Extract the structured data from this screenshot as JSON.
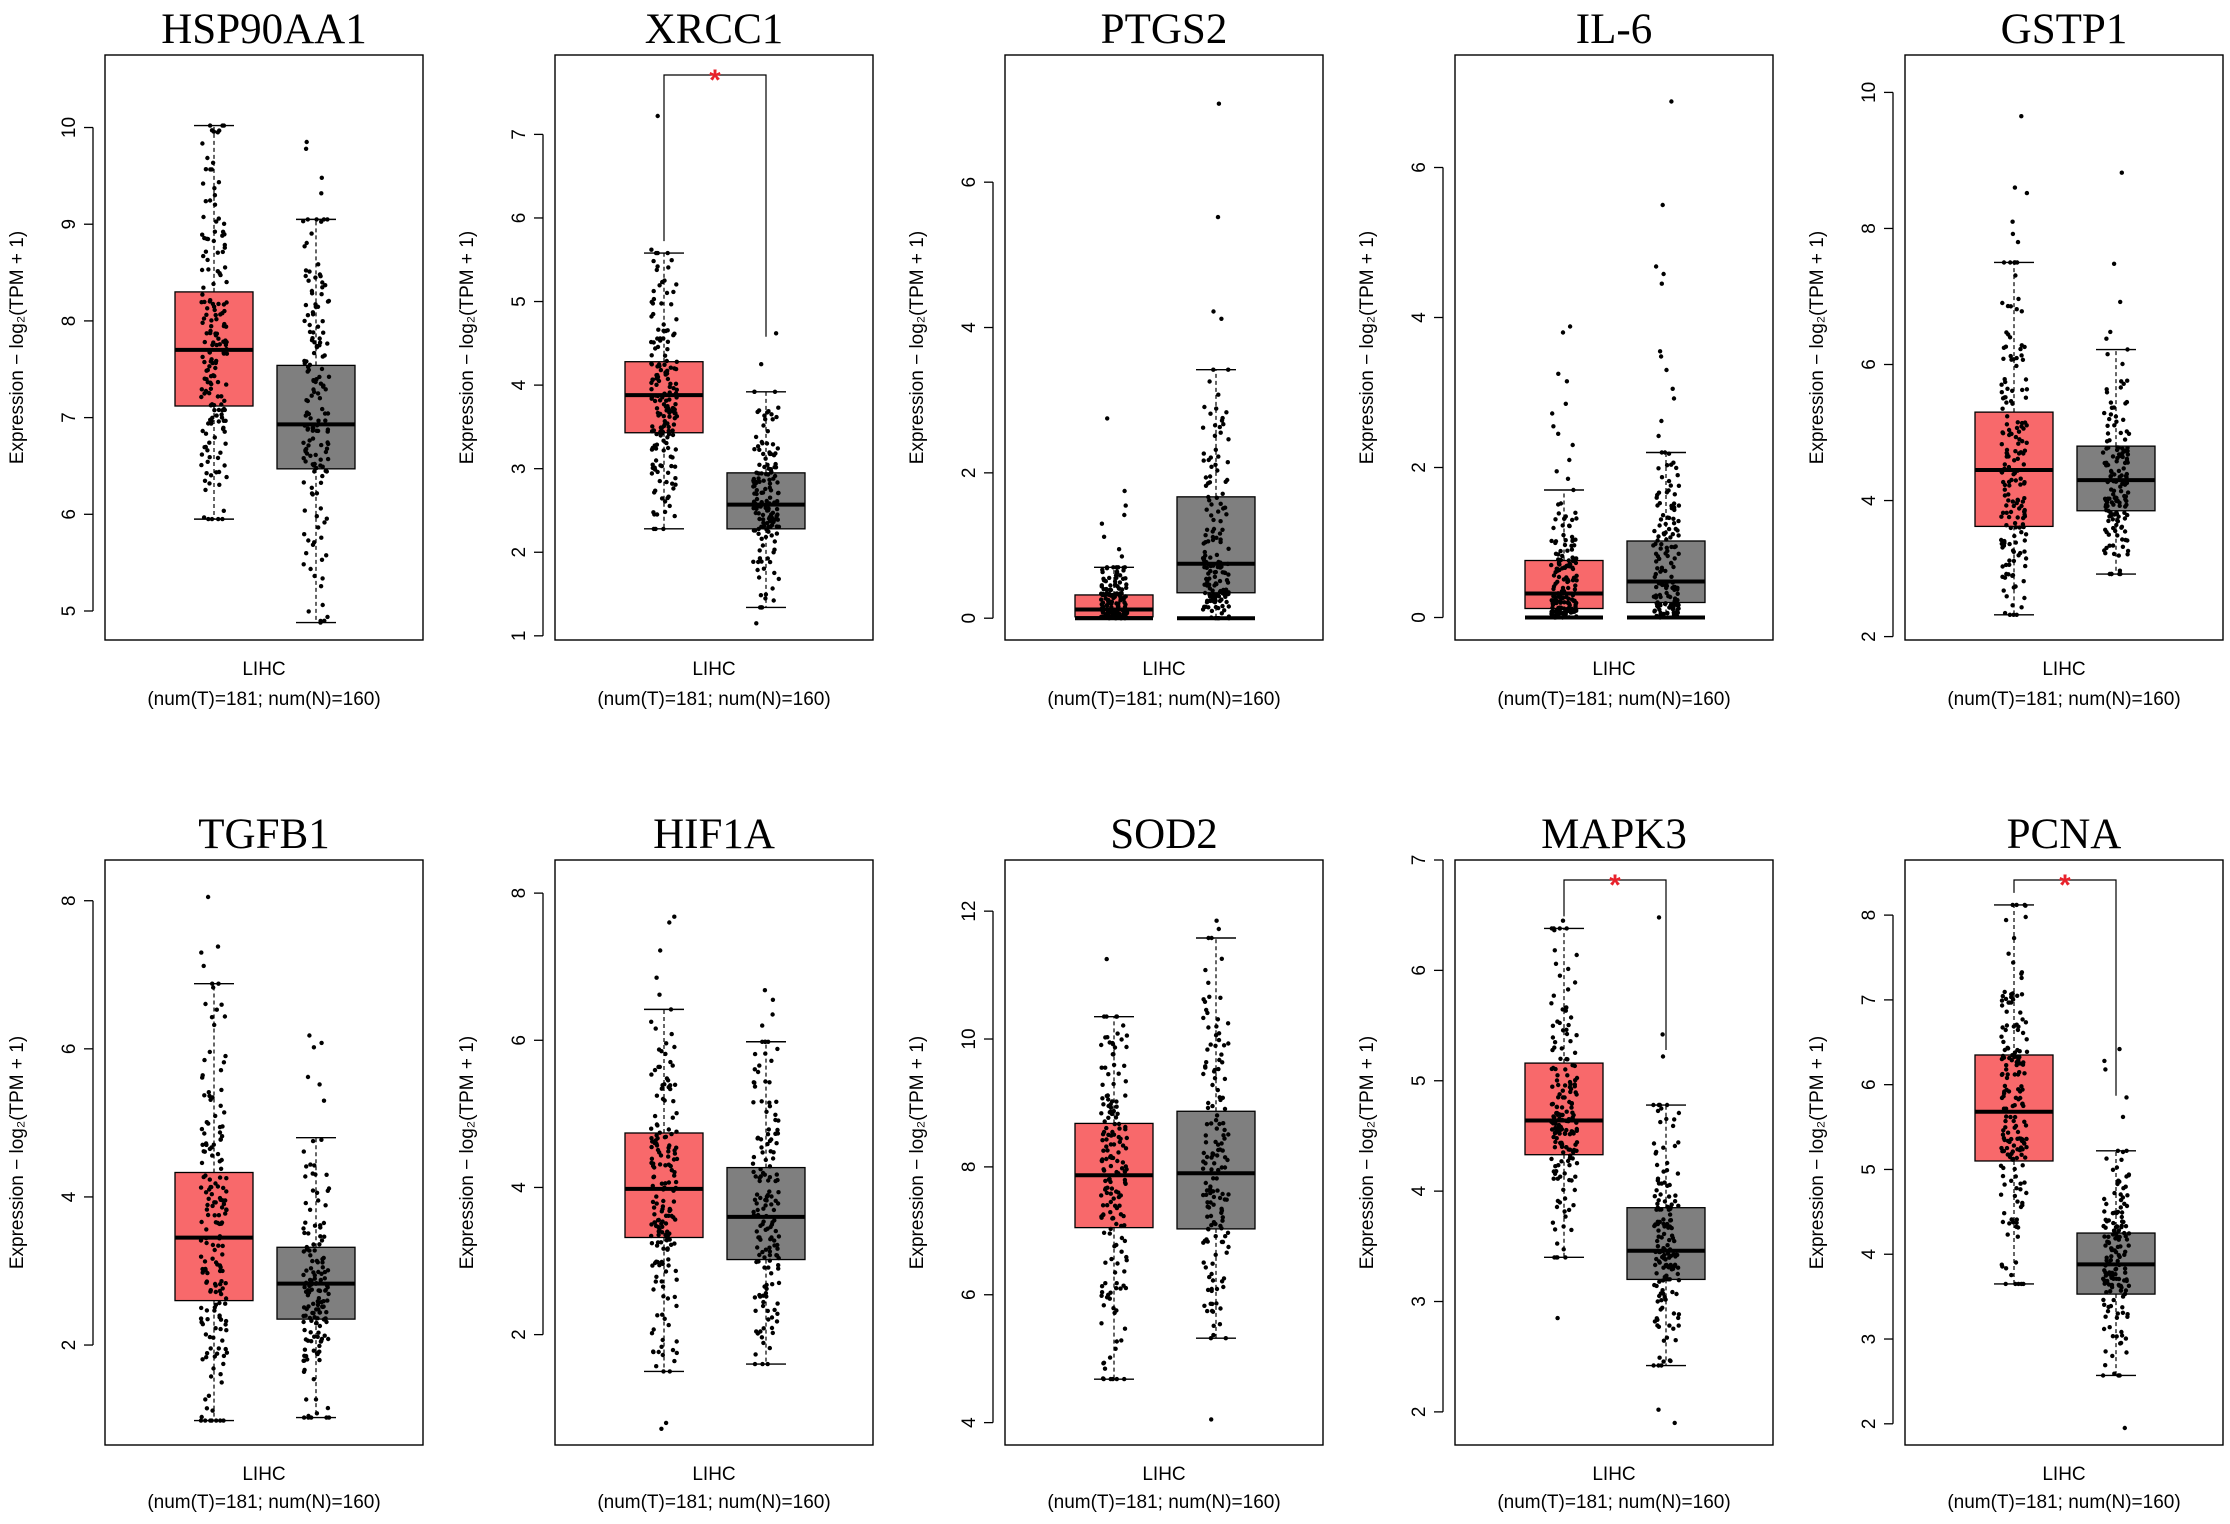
{
  "figure": {
    "tumor_color": "#F8696B",
    "normal_color": "#7F7F7F",
    "star_color": "#E8212B"
  },
  "chart_data": [
    {
      "type": "box",
      "title": "HSP90AA1",
      "ylabel": "Expression − log₂(TPM + 1)",
      "xlabel": "LIHC",
      "xsub": "(num(T)=181; num(N)=160)",
      "yticks": [
        5,
        6,
        7,
        8,
        9,
        10
      ],
      "ytick_labels": [
        "5",
        "6",
        "7",
        "8",
        "9",
        "10"
      ],
      "ylim": [
        4.7,
        10.75
      ],
      "significant": false,
      "series": [
        {
          "name": "Tumor",
          "n": 181,
          "min": 5.95,
          "q1": 7.12,
          "median": 7.7,
          "q3": 8.3,
          "max": 10.02,
          "outliers": []
        },
        {
          "name": "Normal",
          "n": 160,
          "min": 4.88,
          "q1": 6.47,
          "median": 6.93,
          "q3": 7.54,
          "max": 9.05,
          "outliers": [
            9.85,
            9.78,
            9.48,
            9.32
          ]
        }
      ]
    },
    {
      "type": "box",
      "title": "XRCC1",
      "ylabel": "Expression − log₂(TPM + 1)",
      "xlabel": "LIHC",
      "xsub": "(num(T)=181; num(N)=160)",
      "yticks": [
        1,
        2,
        3,
        4,
        5,
        6,
        7
      ],
      "ytick_labels": [
        "1",
        "2",
        "3",
        "4",
        "5",
        "6",
        "7"
      ],
      "ylim": [
        0.95,
        7.95
      ],
      "significant": true,
      "star": "*",
      "series": [
        {
          "name": "Tumor",
          "n": 181,
          "min": 2.28,
          "q1": 3.43,
          "median": 3.88,
          "q3": 4.28,
          "max": 5.58,
          "outliers": [
            7.22,
            5.62
          ]
        },
        {
          "name": "Normal",
          "n": 160,
          "min": 1.34,
          "q1": 2.28,
          "median": 2.57,
          "q3": 2.95,
          "max": 3.92,
          "outliers": [
            4.62,
            4.25,
            1.15
          ]
        }
      ]
    },
    {
      "type": "box",
      "title": "PTGS2",
      "ylabel": "Expression − log₂(TPM + 1)",
      "xlabel": "LIHC",
      "xsub": "(num(T)=181; num(N)=160)",
      "yticks": [
        0,
        2,
        4,
        6
      ],
      "ytick_labels": [
        "0",
        "2",
        "4",
        "6"
      ],
      "ylim": [
        -0.3,
        7.75
      ],
      "significant": false,
      "series": [
        {
          "name": "Tumor",
          "n": 181,
          "min": 0.0,
          "q1": 0.02,
          "median": 0.12,
          "q3": 0.32,
          "max": 0.7,
          "outliers": [
            2.75,
            1.75,
            1.55,
            1.42,
            1.3,
            1.12,
            0.95,
            0.85
          ]
        },
        {
          "name": "Normal",
          "n": 160,
          "min": 0.0,
          "q1": 0.35,
          "median": 0.75,
          "q3": 1.67,
          "max": 3.42,
          "outliers": [
            7.08,
            5.52,
            4.22,
            4.12
          ]
        }
      ]
    },
    {
      "type": "box",
      "title": "IL-6",
      "ylabel": "Expression − log₂(TPM + 1)",
      "xlabel": "LIHC",
      "xsub": "(num(T)=181; num(N)=160)",
      "yticks": [
        0,
        2,
        4,
        6
      ],
      "ytick_labels": [
        "0",
        "2",
        "4",
        "6"
      ],
      "ylim": [
        -0.3,
        7.5
      ],
      "significant": false,
      "series": [
        {
          "name": "Tumor",
          "n": 181,
          "min": 0.0,
          "q1": 0.12,
          "median": 0.32,
          "q3": 0.76,
          "max": 1.7,
          "outliers": [
            3.88,
            3.8,
            3.25,
            3.15,
            2.85,
            2.72,
            2.55,
            2.45,
            2.3,
            2.1,
            1.95,
            1.85
          ]
        },
        {
          "name": "Normal",
          "n": 160,
          "min": 0.0,
          "q1": 0.2,
          "median": 0.48,
          "q3": 1.02,
          "max": 2.2,
          "outliers": [
            6.88,
            5.5,
            4.68,
            4.58,
            4.45,
            3.55,
            3.48,
            3.3,
            3.05,
            2.92,
            2.62,
            2.42
          ]
        }
      ]
    },
    {
      "type": "box",
      "title": "GSTP1",
      "ylabel": "Expression − log₂(TPM + 1)",
      "xlabel": "LIHC",
      "xsub": "(num(T)=181; num(N)=160)",
      "yticks": [
        2,
        4,
        6,
        8,
        10
      ],
      "ytick_labels": [
        "2",
        "4",
        "6",
        "8",
        "10"
      ],
      "ylim": [
        1.95,
        10.55
      ],
      "significant": false,
      "series": [
        {
          "name": "Tumor",
          "n": 181,
          "min": 2.32,
          "q1": 3.62,
          "median": 4.45,
          "q3": 5.3,
          "max": 7.5,
          "outliers": [
            9.65,
            8.6,
            8.52,
            8.1,
            7.92,
            7.8
          ]
        },
        {
          "name": "Normal",
          "n": 160,
          "min": 2.92,
          "q1": 3.85,
          "median": 4.3,
          "q3": 4.8,
          "max": 6.22,
          "outliers": [
            8.82,
            7.48,
            6.92,
            6.48,
            6.38
          ]
        }
      ]
    },
    {
      "type": "box",
      "title": "TGFB1",
      "ylabel": "Expression − log₂(TPM + 1)",
      "xlabel": "LIHC",
      "xsub": "(num(T)=181; num(N)=160)",
      "yticks": [
        2,
        4,
        6,
        8
      ],
      "ytick_labels": [
        "2",
        "4",
        "6",
        "8"
      ],
      "ylim": [
        0.65,
        8.55
      ],
      "significant": false,
      "series": [
        {
          "name": "Tumor",
          "n": 181,
          "min": 0.98,
          "q1": 2.6,
          "median": 3.45,
          "q3": 4.33,
          "max": 6.88,
          "outliers": [
            8.05,
            7.38,
            7.3,
            7.12
          ]
        },
        {
          "name": "Normal",
          "n": 160,
          "min": 1.02,
          "q1": 2.35,
          "median": 2.83,
          "q3": 3.32,
          "max": 4.8,
          "outliers": [
            6.18,
            6.08,
            6.02,
            5.62,
            5.52,
            5.3
          ]
        }
      ]
    },
    {
      "type": "box",
      "title": "HIF1A",
      "ylabel": "Expression − log₂(TPM + 1)",
      "xlabel": "LIHC",
      "xsub": "(num(T)=181; num(N)=160)",
      "yticks": [
        2,
        4,
        6,
        8
      ],
      "ytick_labels": [
        "2",
        "4",
        "6",
        "8"
      ],
      "ylim": [
        0.5,
        8.45
      ],
      "significant": false,
      "series": [
        {
          "name": "Tumor",
          "n": 181,
          "min": 1.5,
          "q1": 3.32,
          "median": 3.98,
          "q3": 4.74,
          "max": 6.42,
          "outliers": [
            7.68,
            7.6,
            7.22,
            6.85,
            6.62,
            0.8,
            0.72
          ]
        },
        {
          "name": "Normal",
          "n": 160,
          "min": 1.6,
          "q1": 3.02,
          "median": 3.6,
          "q3": 4.27,
          "max": 5.98,
          "outliers": [
            6.68,
            6.55,
            6.35,
            6.2
          ]
        }
      ]
    },
    {
      "type": "box",
      "title": "SOD2",
      "ylabel": "Expression − log₂(TPM + 1)",
      "xlabel": "LIHC",
      "xsub": "(num(T)=181; num(N)=160)",
      "yticks": [
        4,
        6,
        8,
        10,
        12
      ],
      "ytick_labels": [
        "4",
        "6",
        "8",
        "10",
        "12"
      ],
      "ylim": [
        3.65,
        12.8
      ],
      "significant": false,
      "series": [
        {
          "name": "Tumor",
          "n": 181,
          "min": 4.68,
          "q1": 7.05,
          "median": 7.87,
          "q3": 8.68,
          "max": 10.35,
          "outliers": [
            11.25
          ]
        },
        {
          "name": "Normal",
          "n": 160,
          "min": 5.32,
          "q1": 7.03,
          "median": 7.9,
          "q3": 8.87,
          "max": 11.58,
          "outliers": [
            11.85,
            11.72,
            4.05
          ]
        }
      ]
    },
    {
      "type": "box",
      "title": "MAPK3",
      "ylabel": "Expression − log₂(TPM + 1)",
      "xlabel": "LIHC",
      "xsub": "(num(T)=181; num(N)=160)",
      "yticks": [
        2,
        3,
        4,
        5,
        6,
        7
      ],
      "ytick_labels": [
        "2",
        "3",
        "4",
        "5",
        "6",
        "7"
      ],
      "ylim": [
        1.7,
        7.0
      ],
      "significant": true,
      "star": "*",
      "series": [
        {
          "name": "Tumor",
          "n": 181,
          "min": 3.4,
          "q1": 4.33,
          "median": 4.64,
          "q3": 5.16,
          "max": 6.38,
          "outliers": [
            6.45,
            2.85
          ]
        },
        {
          "name": "Normal",
          "n": 160,
          "min": 2.42,
          "q1": 3.2,
          "median": 3.46,
          "q3": 3.85,
          "max": 4.78,
          "outliers": [
            6.48,
            5.42,
            5.22,
            2.02,
            1.9
          ]
        }
      ]
    },
    {
      "type": "box",
      "title": "PCNA",
      "ylabel": "Expression − log₂(TPM + 1)",
      "xlabel": "LIHC",
      "xsub": "(num(T)=181; num(N)=160)",
      "yticks": [
        2,
        3,
        4,
        5,
        6,
        7,
        8
      ],
      "ytick_labels": [
        "2",
        "3",
        "4",
        "5",
        "6",
        "7",
        "8"
      ],
      "ylim": [
        1.75,
        8.65
      ],
      "significant": true,
      "star": "*",
      "series": [
        {
          "name": "Tumor",
          "n": 181,
          "min": 3.65,
          "q1": 5.1,
          "median": 5.68,
          "q3": 6.35,
          "max": 8.12,
          "outliers": []
        },
        {
          "name": "Normal",
          "n": 160,
          "min": 2.57,
          "q1": 3.53,
          "median": 3.88,
          "q3": 4.25,
          "max": 5.22,
          "outliers": [
            6.42,
            6.28,
            6.18,
            5.85,
            5.62,
            1.95
          ]
        }
      ]
    }
  ]
}
